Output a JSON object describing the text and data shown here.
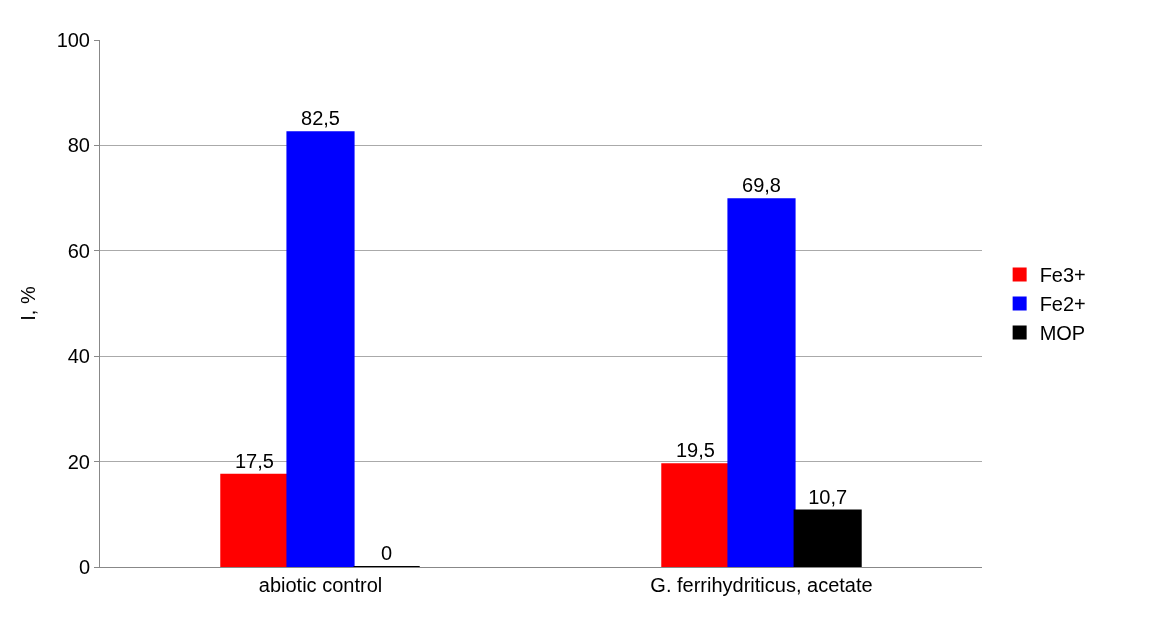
{
  "chart_data": {
    "type": "bar",
    "ylabel": "I, %",
    "categories": [
      "abiotic control",
      "G. ferrihydriticus, acetate"
    ],
    "series": [
      {
        "name": "Fe3+",
        "color": "#ff0000",
        "values": [
          17.5,
          19.5
        ],
        "value_labels": [
          "17,5",
          "19,5"
        ]
      },
      {
        "name": "Fe2+",
        "color": "#0000ff",
        "values": [
          82.5,
          69.8
        ],
        "value_labels": [
          "82,5",
          "69,8"
        ]
      },
      {
        "name": "MOP",
        "color": "#000000",
        "values": [
          0,
          10.7
        ],
        "value_labels": [
          "0",
          "10,7"
        ]
      }
    ],
    "ylim": [
      0,
      100
    ],
    "yticks": [
      0,
      20,
      40,
      60,
      80,
      100
    ],
    "grid": "y",
    "legend": "right"
  }
}
